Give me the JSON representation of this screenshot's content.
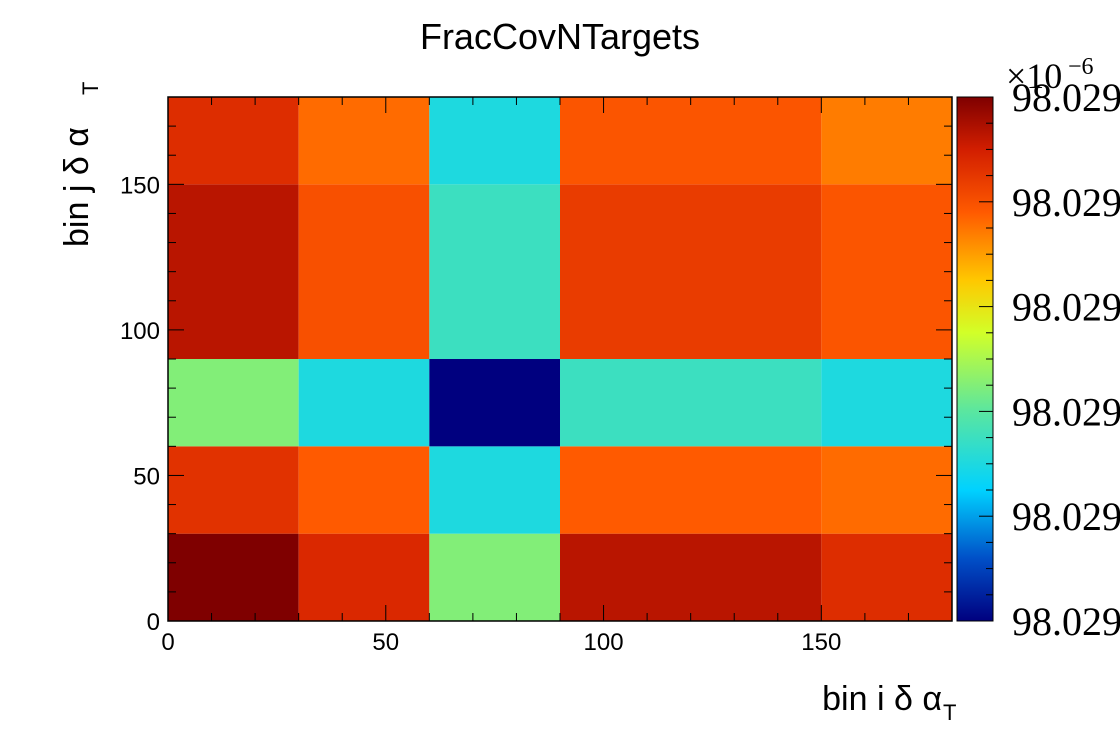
{
  "chart_data": {
    "type": "heatmap",
    "title": "FracCovNTargets",
    "xlabel": "bin i δ α",
    "xlabel_subscript": "T",
    "ylabel": "bin j δ α",
    "ylabel_subscript": "T",
    "x_edges": [
      0,
      30,
      60,
      90,
      150,
      180
    ],
    "y_edges": [
      0,
      30,
      60,
      90,
      150,
      180
    ],
    "xlim": [
      0,
      180
    ],
    "ylim": [
      0,
      180
    ],
    "x_ticks": [
      0,
      50,
      100,
      150
    ],
    "y_ticks": [
      0,
      50,
      100,
      150
    ],
    "z_scale": 1e-06,
    "z_scale_label": "×10",
    "z_scale_exponent": "−6",
    "z_tick_labels": [
      "98.029",
      "98.029",
      "98.029",
      "98.029",
      "98.029",
      "98.029"
    ],
    "z_normalized_rows_bottom_to_top": [
      [
        1.0,
        0.88,
        0.45,
        0.93,
        0.87
      ],
      [
        0.86,
        0.78,
        0.3,
        0.78,
        0.76
      ],
      [
        0.45,
        0.3,
        0.0,
        0.35,
        0.3
      ],
      [
        0.93,
        0.8,
        0.35,
        0.84,
        0.79
      ],
      [
        0.87,
        0.76,
        0.3,
        0.79,
        0.74
      ]
    ]
  }
}
